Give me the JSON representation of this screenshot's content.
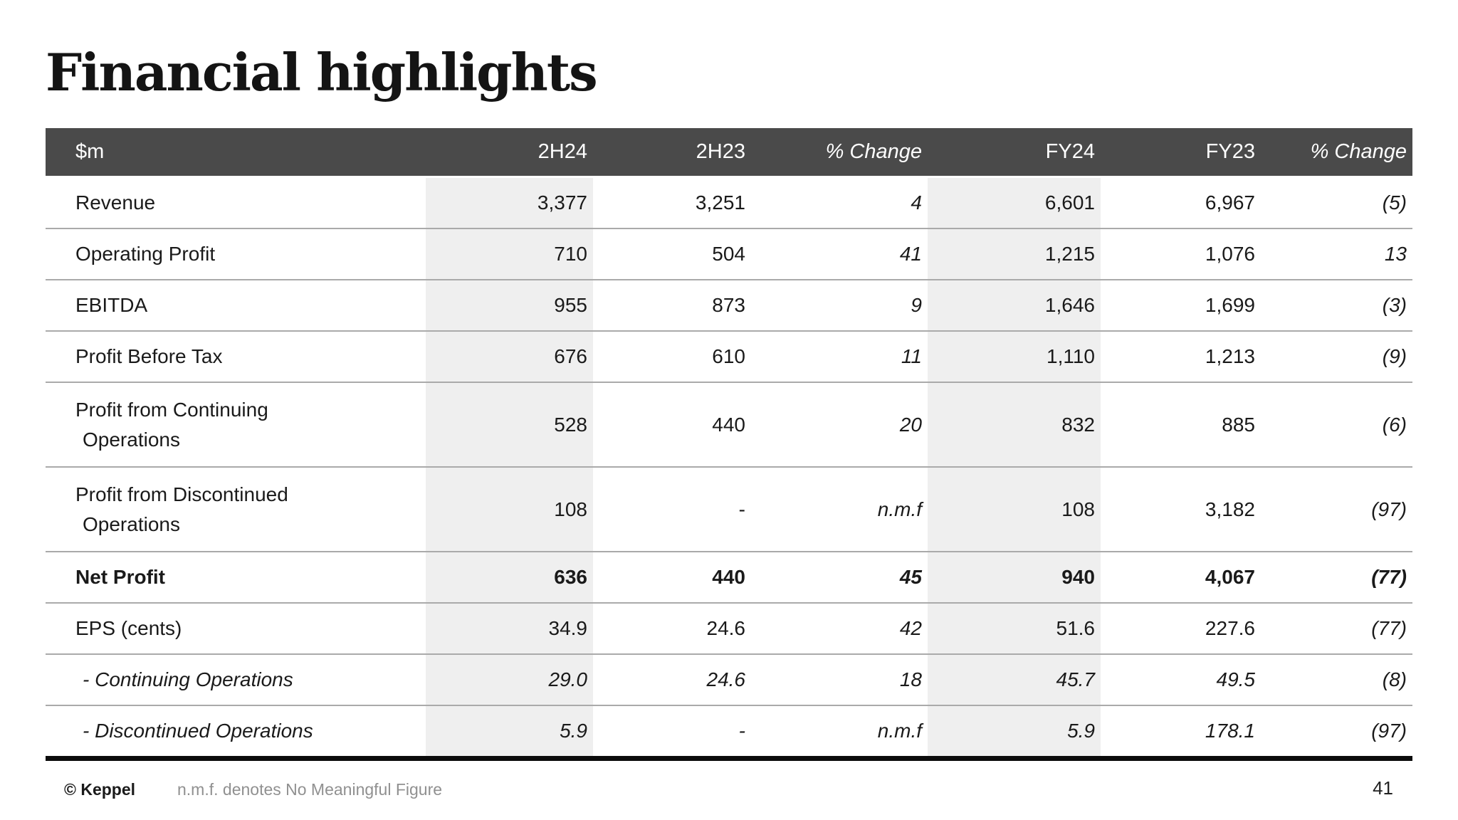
{
  "page": {
    "title": "Financial highlights"
  },
  "table": {
    "unit_label": "$m",
    "columns": [
      "2H24",
      "2H23",
      "% Change",
      "FY24",
      "FY23",
      "% Change"
    ],
    "rows": [
      {
        "label": "Revenue",
        "values": [
          "3,377",
          "3,251",
          "4",
          "6,601",
          "6,967",
          "(5)"
        ]
      },
      {
        "label": "Operating Profit",
        "values": [
          "710",
          "504",
          "41",
          "1,215",
          "1,076",
          "13"
        ]
      },
      {
        "label": "EBITDA",
        "values": [
          "955",
          "873",
          "9",
          "1,646",
          "1,699",
          "(3)"
        ]
      },
      {
        "label": "Profit Before Tax",
        "values": [
          "676",
          "610",
          "11",
          "1,110",
          "1,213",
          "(9)"
        ]
      },
      {
        "label": "Profit from Continuing",
        "label2": "Operations",
        "values": [
          "528",
          "440",
          "20",
          "832",
          "885",
          "(6)"
        ]
      },
      {
        "label": "Profit from Discontinued",
        "label2": "Operations",
        "values": [
          "108",
          "-",
          "n.m.f",
          "108",
          "3,182",
          "(97)"
        ]
      },
      {
        "label": "Net Profit",
        "values": [
          "636",
          "440",
          "45",
          "940",
          "4,067",
          "(77)"
        ]
      },
      {
        "label": "EPS (cents)",
        "values": [
          "34.9",
          "24.6",
          "42",
          "51.6",
          "227.6",
          "(77)"
        ]
      },
      {
        "label": "- Continuing Operations",
        "values": [
          "29.0",
          "24.6",
          "18",
          "45.7",
          "49.5",
          "(8)"
        ]
      },
      {
        "label": "- Discontinued Operations",
        "values": [
          "5.9",
          "-",
          "n.m.f",
          "5.9",
          "178.1",
          "(97)"
        ]
      }
    ]
  },
  "footer": {
    "copyright": "© Keppel",
    "note": "n.m.f. denotes No Meaningful Figure",
    "page_number": "41"
  },
  "colors": {
    "header_bg": "#4a4a4a",
    "header_text": "#ffffff",
    "column_shade": "#efefef",
    "row_divider": "#aaaaaa",
    "table_bottom_border": "#0c0c0c",
    "note_gray": "#909090"
  }
}
